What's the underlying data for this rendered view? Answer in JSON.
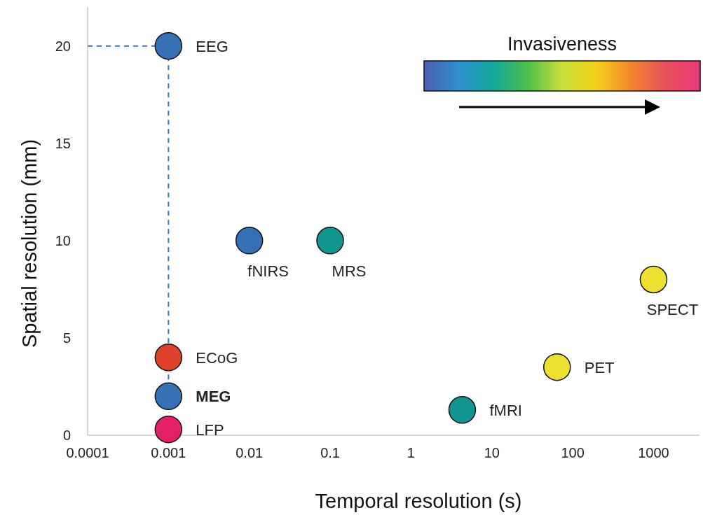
{
  "chart_data": {
    "type": "scatter",
    "xlabel": "Temporal resolution (s)",
    "ylabel": "Spatial resolution (mm)",
    "clabel": "Invasiveness",
    "log": "x",
    "xlim": [
      0.0001,
      3700
    ],
    "xticks": [
      0.0001,
      0.001,
      0.01,
      0.1,
      1,
      10,
      100,
      1000
    ],
    "ylim": [
      0,
      22
    ],
    "yticks": [
      0,
      5,
      10,
      15,
      20
    ],
    "grid": false,
    "marker": "circle",
    "series": [
      {
        "type": "line",
        "x": [
          0.0001,
          0.001,
          0.001
        ],
        "values": [
          20,
          20,
          2.7
        ],
        "color": "#3a75b5",
        "line_style": "dashed",
        "marker": "none"
      },
      {
        "type": "scatter",
        "x": [
          0.001,
          0.001,
          0.001,
          0.001,
          0.01,
          0.1,
          4.3,
          64,
          1000
        ],
        "values": [
          20,
          4,
          2,
          0.3,
          10,
          10,
          1.3,
          3.5,
          8
        ],
        "colors": [
          "#3572b5",
          "#e0412b",
          "#3572b5",
          "#e32068",
          "#3572b5",
          "#109590",
          "#109590",
          "#ede02e",
          "#ede02e"
        ]
      }
    ],
    "annotations": [
      {
        "text": "EEG",
        "x": 0.001,
        "y": 20
      },
      {
        "text": "ECoG",
        "x": 0.001,
        "y": 4
      },
      {
        "text": "MEG",
        "x": 0.001,
        "y": 2
      },
      {
        "text": "LFP",
        "x": 0.001,
        "y": 0.3
      },
      {
        "text": "fNIRS",
        "x": 0.01,
        "y": 10
      },
      {
        "text": "MRS",
        "x": 0.1,
        "y": 10
      },
      {
        "text": "fMRI",
        "x": 4.3,
        "y": 1.3
      },
      {
        "text": "PET",
        "x": 64,
        "y": 3.5
      },
      {
        "text": "SPECT",
        "x": 1000,
        "y": 8
      }
    ]
  }
}
